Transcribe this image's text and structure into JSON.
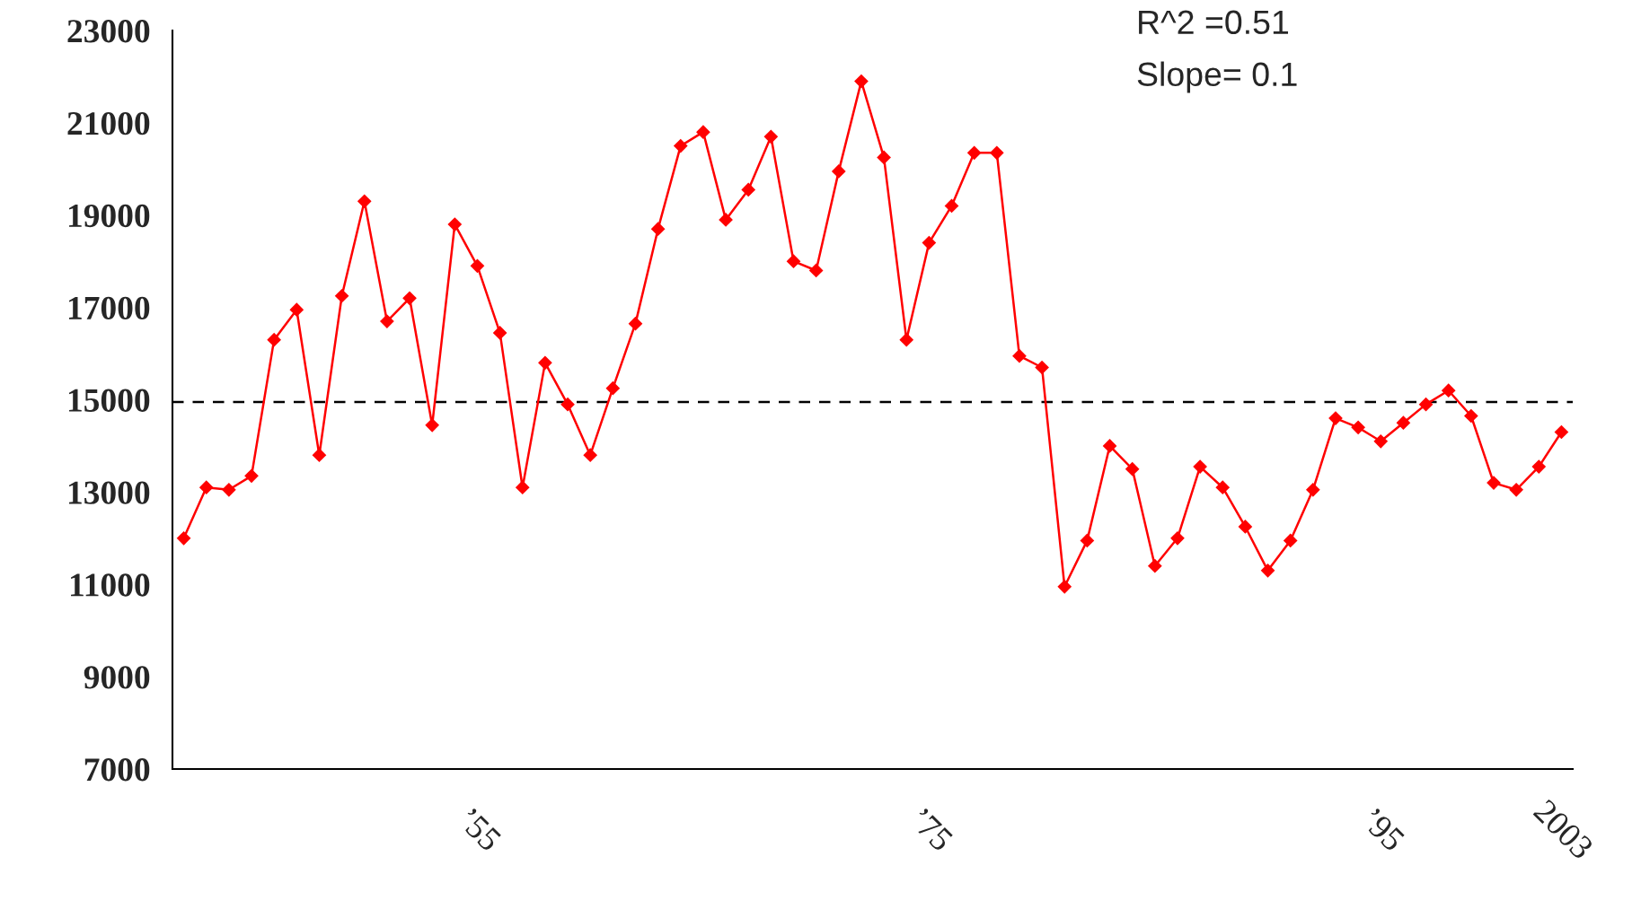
{
  "chart_data": {
    "type": "line",
    "categories": [
      null,
      null,
      null,
      null,
      null,
      null,
      null,
      null,
      null,
      null,
      null,
      null,
      null,
      "’55",
      null,
      null,
      null,
      null,
      null,
      null,
      null,
      null,
      null,
      null,
      null,
      null,
      null,
      null,
      null,
      null,
      null,
      null,
      null,
      "’75",
      null,
      null,
      null,
      null,
      null,
      null,
      null,
      null,
      null,
      null,
      null,
      null,
      null,
      null,
      null,
      null,
      null,
      null,
      null,
      "’95",
      null,
      null,
      null,
      null,
      null,
      null,
      null,
      "2003"
    ],
    "series": [
      {
        "color": "#ff0000",
        "values": [
          12000,
          13100,
          13050,
          13350,
          16300,
          16950,
          13800,
          17250,
          19300,
          16700,
          17200,
          14450,
          18800,
          17900,
          16450,
          13100,
          15800,
          14900,
          13800,
          15250,
          16650,
          18700,
          20500,
          20800,
          18900,
          19550,
          20700,
          18000,
          17800,
          19950,
          21900,
          20250,
          16300,
          18400,
          19200,
          20350,
          20350,
          15950,
          15700,
          10950,
          11950,
          14000,
          13500,
          11400,
          12000,
          13550,
          13100,
          12250,
          11300,
          11950,
          13050,
          14600,
          14400,
          14100,
          14500,
          14900,
          15200,
          14650,
          13200,
          13050,
          13550,
          14300
        ]
      }
    ],
    "ylim": [
      7000,
      23000
    ],
    "yticks": [
      7000,
      9000,
      11000,
      13000,
      15000,
      17000,
      19000,
      21000,
      23000
    ],
    "ref_lines": [
      {
        "axis": "y",
        "value": 14950,
        "color": "#000000",
        "line_style": "dashed"
      }
    ],
    "annotations": [
      "R^2 =0.51",
      "Slope= 0.1"
    ],
    "marker": "diamond",
    "line_style": "solid",
    "grid": false,
    "legend": false
  }
}
